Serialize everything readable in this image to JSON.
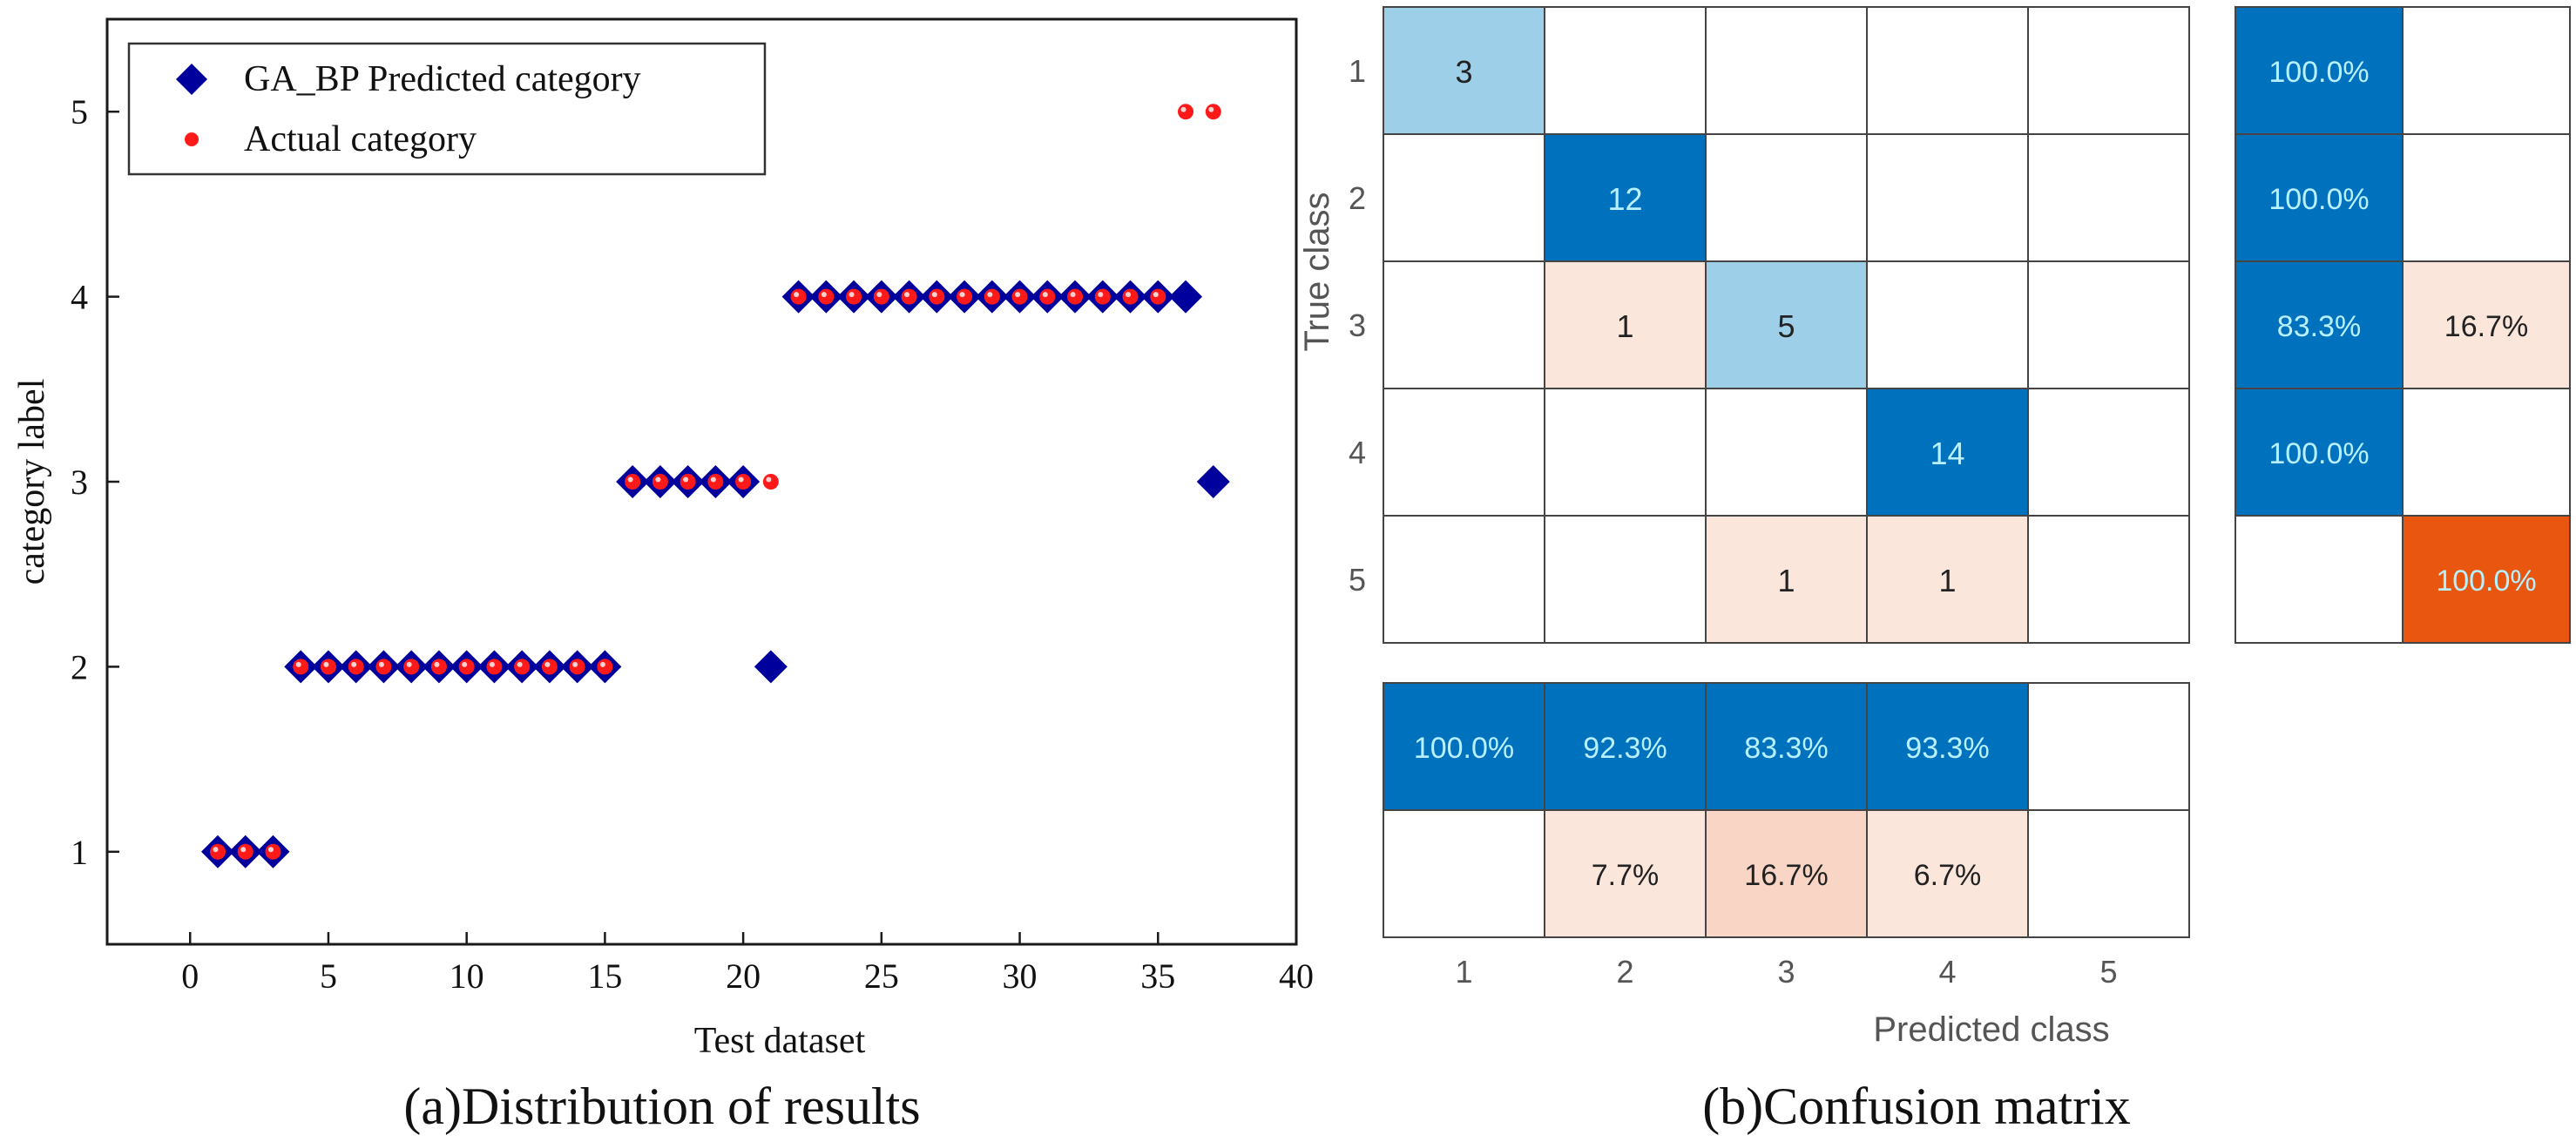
{
  "chart_data": [
    {
      "type": "scatter",
      "panel_caption": "(a)Distribution of results",
      "xlabel": "Test dataset",
      "ylabel": "category label",
      "xlim": [
        -3,
        40
      ],
      "ylim": [
        0.5,
        5.5
      ],
      "xticks": [
        0,
        5,
        10,
        15,
        20,
        25,
        30,
        35,
        40
      ],
      "yticks": [
        1,
        2,
        3,
        4,
        5
      ],
      "grid": false,
      "legend_position": "top-left",
      "series": [
        {
          "name": "GA_BP Predicted category",
          "marker": "diamond",
          "color": "#00009c",
          "x": [
            1,
            2,
            3,
            4,
            5,
            6,
            7,
            8,
            9,
            10,
            11,
            12,
            13,
            14,
            15,
            16,
            17,
            18,
            19,
            20,
            21,
            22,
            23,
            24,
            25,
            26,
            27,
            28,
            29,
            30,
            31,
            32,
            33,
            34,
            35,
            36,
            37
          ],
          "y": [
            1,
            1,
            1,
            2,
            2,
            2,
            2,
            2,
            2,
            2,
            2,
            2,
            2,
            2,
            2,
            3,
            3,
            3,
            3,
            3,
            2,
            4,
            4,
            4,
            4,
            4,
            4,
            4,
            4,
            4,
            4,
            4,
            4,
            4,
            4,
            4,
            3
          ]
        },
        {
          "name": "Actual category",
          "marker": "circle",
          "color": "#ff1a1a",
          "x": [
            1,
            2,
            3,
            4,
            5,
            6,
            7,
            8,
            9,
            10,
            11,
            12,
            13,
            14,
            15,
            16,
            17,
            18,
            19,
            20,
            21,
            22,
            23,
            24,
            25,
            26,
            27,
            28,
            29,
            30,
            31,
            32,
            33,
            34,
            35,
            36,
            37
          ],
          "y": [
            1,
            1,
            1,
            2,
            2,
            2,
            2,
            2,
            2,
            2,
            2,
            2,
            2,
            2,
            2,
            3,
            3,
            3,
            3,
            3,
            3,
            4,
            4,
            4,
            4,
            4,
            4,
            4,
            4,
            4,
            4,
            4,
            4,
            4,
            4,
            5,
            5
          ]
        }
      ]
    },
    {
      "type": "heatmap",
      "panel_caption": "(b)Confusion matrix",
      "xlabel": "Predicted class",
      "ylabel": "True class",
      "classes": [
        "1",
        "2",
        "3",
        "4",
        "5"
      ],
      "matrix": [
        [
          3,
          0,
          0,
          0,
          0
        ],
        [
          0,
          12,
          0,
          0,
          0
        ],
        [
          0,
          1,
          5,
          0,
          0
        ],
        [
          0,
          0,
          0,
          14,
          0
        ],
        [
          0,
          0,
          1,
          1,
          0
        ]
      ],
      "row_summary": [
        [
          "100.0%",
          ""
        ],
        [
          "100.0%",
          ""
        ],
        [
          "83.3%",
          "16.7%"
        ],
        [
          "100.0%",
          ""
        ],
        [
          "",
          "100.0%"
        ]
      ],
      "col_summary": [
        [
          "100.0%",
          "92.3%",
          "83.3%",
          "93.3%",
          ""
        ],
        [
          "",
          "7.7%",
          "16.7%",
          "6.7%",
          ""
        ]
      ],
      "colors": {
        "correct_dark": "#0072bd",
        "correct_light": "#9ecfe8",
        "error_light": "#fbe6dc",
        "error_mid": "#f8d5c4",
        "error_dark": "#e8560f",
        "text_on_dark": "#b8f0ff",
        "text_default": "#222222",
        "grid_line": "#444444"
      }
    }
  ]
}
